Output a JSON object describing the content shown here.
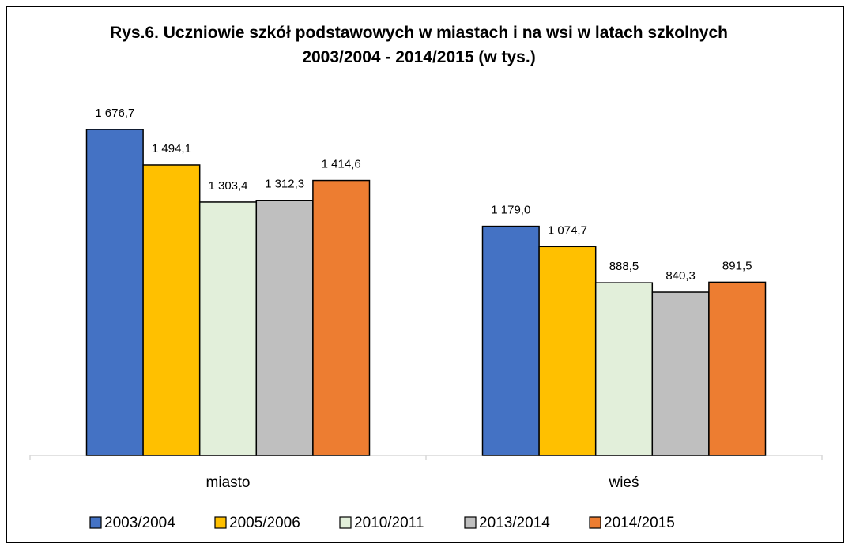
{
  "chart_data": {
    "type": "bar",
    "title": "Rys.6. Uczniowie szkół podstawowych w miastach i na wsi w latach szkolnych 2003/2004 - 2014/2015 (w tys.)",
    "categories": [
      "miasto",
      "wieś"
    ],
    "series": [
      {
        "name": "2003/2004",
        "color": "#4472c4",
        "values": [
          1676.7,
          1179.0
        ],
        "value_labels": [
          "1 676,7",
          "1 179,0"
        ]
      },
      {
        "name": "2005/2006",
        "color": "#ffc000",
        "values": [
          1494.1,
          1074.7
        ],
        "value_labels": [
          "1 494,1",
          "1 074,7"
        ]
      },
      {
        "name": "2010/2011",
        "color": "#e2efda",
        "values": [
          1303.4,
          888.5
        ],
        "value_labels": [
          "1 303,4",
          "888,5"
        ]
      },
      {
        "name": "2013/2014",
        "color": "#bfbfbf",
        "values": [
          1312.3,
          840.3
        ],
        "value_labels": [
          "1 312,3",
          "840,3"
        ]
      },
      {
        "name": "2014/2015",
        "color": "#ed7d31",
        "values": [
          1414.6,
          891.5
        ],
        "value_labels": [
          "1 414,6",
          "891,5"
        ]
      }
    ],
    "legend": "bottom"
  }
}
